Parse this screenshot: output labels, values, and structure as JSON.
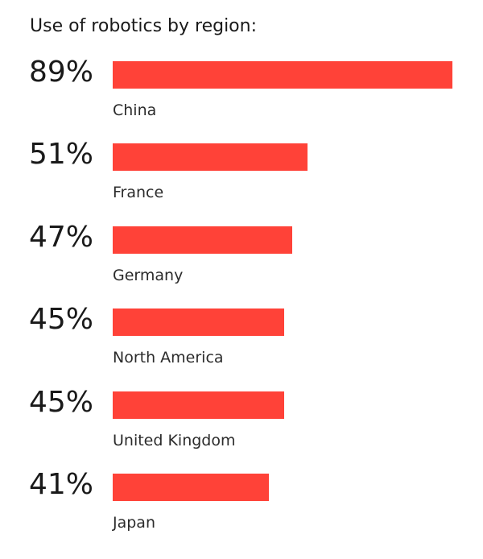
{
  "chart_data": {
    "type": "bar",
    "orientation": "horizontal",
    "title": "Use of robotics by region:",
    "categories": [
      "China",
      "France",
      "Germany",
      "North America",
      "United Kingdom",
      "Japan"
    ],
    "values": [
      89,
      51,
      47,
      45,
      45,
      41
    ],
    "value_labels": [
      "89%",
      "51%",
      "47%",
      "45%",
      "45%",
      "41%"
    ],
    "unit": "%",
    "xlim": [
      0,
      89
    ],
    "grid": false,
    "legend": "none",
    "colors": {
      "bar": "#ff4238",
      "text": "#1a1a1a"
    }
  }
}
